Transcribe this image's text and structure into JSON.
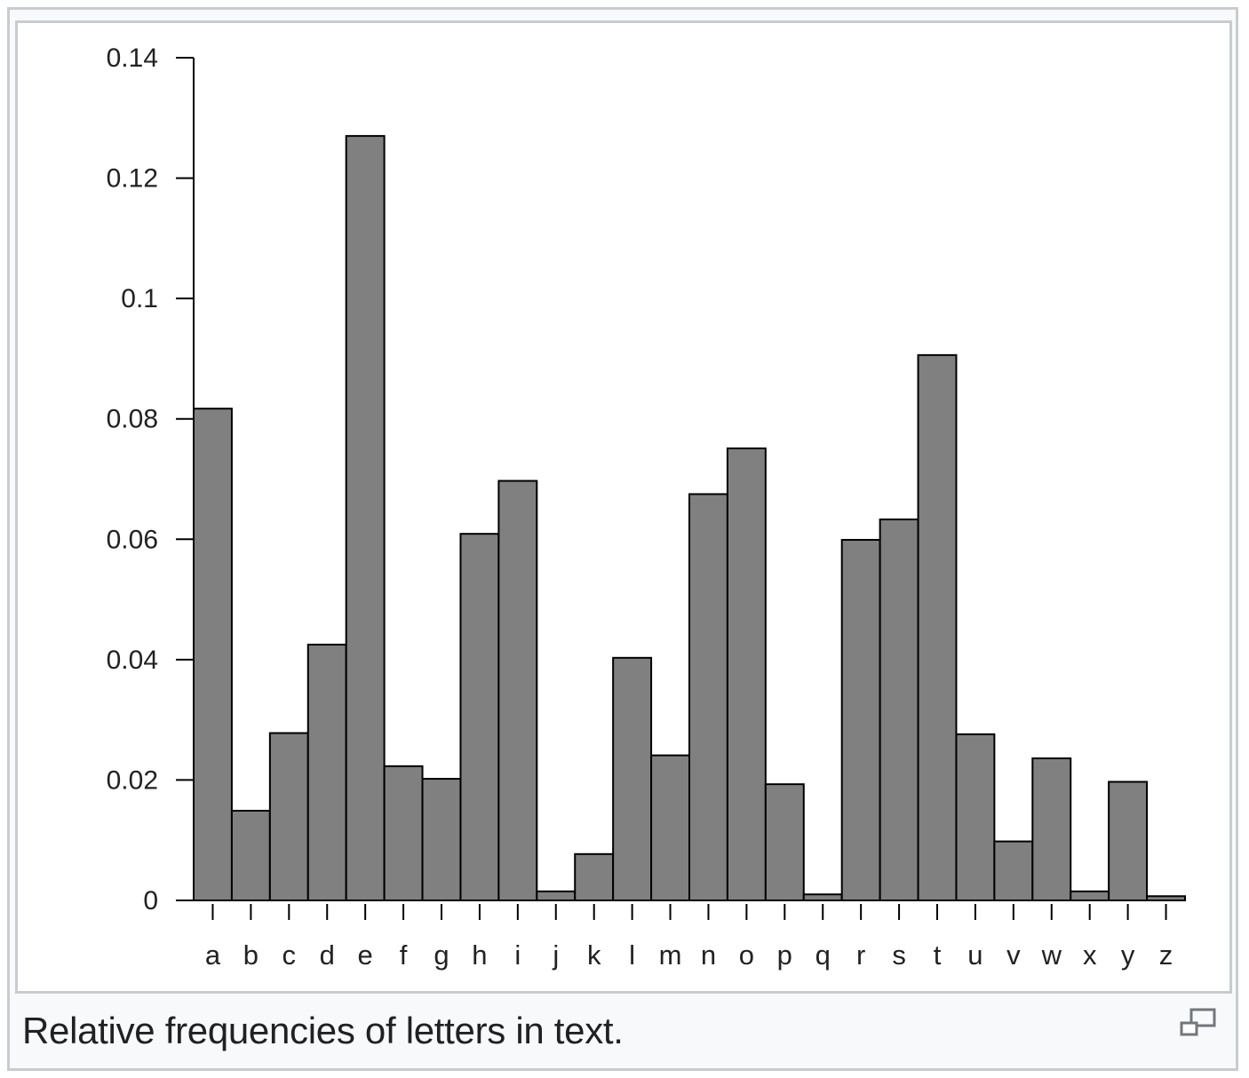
{
  "caption": "Relative frequencies of letters in text.",
  "magnify_icon": "enlarge-icon",
  "colors": {
    "bar_fill": "#808080",
    "bar_stroke": "#000000",
    "border": "#c8ccd1"
  },
  "chart_data": {
    "type": "bar",
    "title": "",
    "xlabel": "",
    "ylabel": "",
    "ylim": [
      0,
      0.14
    ],
    "yticks": [
      0,
      0.02,
      0.04,
      0.06,
      0.08,
      0.1,
      0.12,
      0.14
    ],
    "ytick_labels": [
      "0",
      "0.02",
      "0.04",
      "0.06",
      "0.08",
      "0.1",
      "0.12",
      "0.14"
    ],
    "grid": false,
    "categories": [
      "a",
      "b",
      "c",
      "d",
      "e",
      "f",
      "g",
      "h",
      "i",
      "j",
      "k",
      "l",
      "m",
      "n",
      "o",
      "p",
      "q",
      "r",
      "s",
      "t",
      "u",
      "v",
      "w",
      "x",
      "y",
      "z"
    ],
    "values": [
      0.0817,
      0.0149,
      0.0278,
      0.0425,
      0.127,
      0.0223,
      0.0202,
      0.0609,
      0.0697,
      0.0015,
      0.0077,
      0.0403,
      0.0241,
      0.0675,
      0.0751,
      0.0193,
      0.001,
      0.0599,
      0.0633,
      0.0906,
      0.0276,
      0.0098,
      0.0236,
      0.0015,
      0.0197,
      0.0007
    ]
  }
}
